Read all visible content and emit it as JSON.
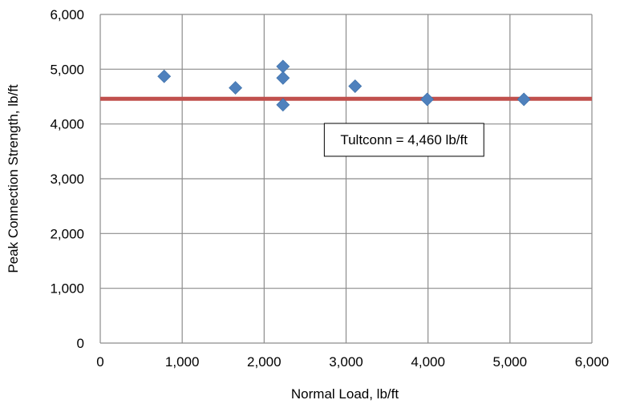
{
  "chart_data": {
    "type": "scatter",
    "title": "",
    "xlabel": "Normal Load, lb/ft",
    "ylabel": "Peak Connection Strength, lb/ft",
    "xlim": [
      0,
      6000
    ],
    "ylim": [
      0,
      6000
    ],
    "x_ticks": [
      0,
      1000,
      2000,
      3000,
      4000,
      5000,
      6000
    ],
    "y_ticks": [
      0,
      1000,
      2000,
      3000,
      4000,
      5000,
      6000
    ],
    "x_tick_labels": [
      "0",
      "1,000",
      "2,000",
      "3,000",
      "4,000",
      "5,000",
      "6,000"
    ],
    "y_tick_labels": [
      "0",
      "1,000",
      "2,000",
      "3,000",
      "4,000",
      "5,000",
      "6,000"
    ],
    "grid": true,
    "legend": "none",
    "series": [
      {
        "marker": "diamond",
        "color": "#4F81BD",
        "points": [
          {
            "x": 780,
            "y": 4870
          },
          {
            "x": 1650,
            "y": 4660
          },
          {
            "x": 2230,
            "y": 5050
          },
          {
            "x": 2230,
            "y": 4840
          },
          {
            "x": 2230,
            "y": 4350
          },
          {
            "x": 3110,
            "y": 4690
          },
          {
            "x": 3990,
            "y": 4450
          },
          {
            "x": 5170,
            "y": 4450
          }
        ]
      }
    ],
    "reference_line": {
      "y": 4460,
      "color": "#C0504D"
    },
    "annotation": {
      "text": "Tultconn = 4,460 lb/ft",
      "anchor_x": 2930,
      "anchor_y": 3630
    }
  }
}
